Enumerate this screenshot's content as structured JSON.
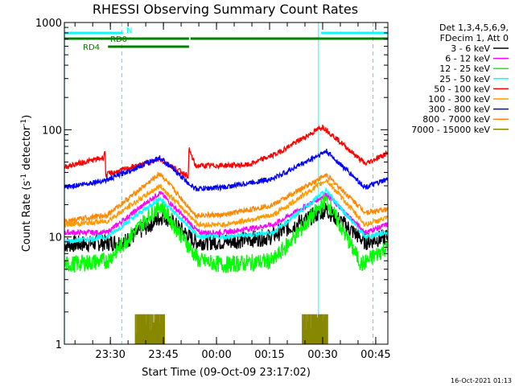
{
  "chart_data": {
    "type": "line",
    "title": "RHESSI Observing Summary Count Rates",
    "xlabel": "Start Time (09-Oct-09 23:17:02)",
    "ylabel_main": "Count Rate (s",
    "ylabel_sup1": "-1",
    "ylabel_mid": " detector",
    "ylabel_sup2": "-1",
    "ylabel_end": ")",
    "y_scale": "log",
    "ylim": [
      1,
      1000
    ],
    "xlim_minutes": [
      -0.03,
      91.4
    ],
    "y_ticks": [
      {
        "value": 1,
        "label": "1"
      },
      {
        "value": 10,
        "label": "10"
      },
      {
        "value": 100,
        "label": "100"
      },
      {
        "value": 1000,
        "label": "1000"
      }
    ],
    "x_ticks": [
      {
        "minute": 12.97,
        "label": "23:30"
      },
      {
        "minute": 27.97,
        "label": "23:45"
      },
      {
        "minute": 42.97,
        "label": "00:00"
      },
      {
        "minute": 57.97,
        "label": "00:15"
      },
      {
        "minute": 72.97,
        "label": "00:30"
      },
      {
        "minute": 87.97,
        "label": "00:45"
      }
    ],
    "legend_header": [
      "Det 1,3,4,5,6,9,",
      "FDecim 1, Att 0"
    ],
    "legend_position": "right",
    "series": [
      {
        "name": "3 - 6 keV",
        "color": "#000000",
        "profile": [
          [
            0,
            8.5
          ],
          [
            17,
            9
          ],
          [
            28,
            16
          ],
          [
            37,
            9
          ],
          [
            45,
            9
          ],
          [
            58,
            10
          ],
          [
            74,
            18
          ],
          [
            85,
            9
          ],
          [
            91,
            10
          ]
        ]
      },
      {
        "name": "6 - 12 keV",
        "color": "#ff00ff",
        "profile": [
          [
            0,
            11
          ],
          [
            12,
            11
          ],
          [
            27,
            26
          ],
          [
            38,
            11
          ],
          [
            45,
            11
          ],
          [
            59,
            13
          ],
          [
            74,
            25
          ],
          [
            85,
            11
          ],
          [
            91,
            13
          ]
        ]
      },
      {
        "name": "12 - 25 keV",
        "color": "#00ff00",
        "profile": [
          [
            0,
            5.5
          ],
          [
            12,
            6
          ],
          [
            27,
            20
          ],
          [
            38,
            6
          ],
          [
            45,
            5.5
          ],
          [
            59,
            6
          ],
          [
            74,
            22
          ],
          [
            84,
            5.5
          ],
          [
            91,
            8
          ]
        ]
      },
      {
        "name": "25 - 50 keV",
        "color": "#00ffff",
        "profile": [
          [
            0,
            9
          ],
          [
            12,
            10
          ],
          [
            27,
            23
          ],
          [
            38,
            10
          ],
          [
            45,
            10
          ],
          [
            59,
            11
          ],
          [
            74,
            27
          ],
          [
            85,
            10
          ],
          [
            91,
            11
          ]
        ]
      },
      {
        "name": "50 - 100 keV",
        "color": "#ff0000",
        "profile": [
          [
            0,
            45
          ],
          [
            11,
            55
          ],
          [
            11.5,
            66
          ],
          [
            11.6,
            38
          ],
          [
            27,
            53
          ],
          [
            35,
            37
          ],
          [
            35.2,
            66
          ],
          [
            37,
            46
          ],
          [
            52,
            47
          ],
          [
            60,
            60
          ],
          [
            73,
            107
          ],
          [
            85,
            48
          ],
          [
            91,
            60
          ]
        ]
      },
      {
        "name": "100 - 300 keV",
        "color": "#ff9900",
        "profile": [
          [
            0,
            13
          ],
          [
            12,
            14
          ],
          [
            27,
            30
          ],
          [
            38,
            13
          ],
          [
            45,
            13
          ],
          [
            59,
            16
          ],
          [
            74,
            34
          ],
          [
            85,
            13
          ],
          [
            91,
            15
          ]
        ]
      },
      {
        "name": "300 - 800 keV",
        "color": "#0000ff",
        "profile": [
          [
            0,
            29
          ],
          [
            12,
            34
          ],
          [
            27,
            55
          ],
          [
            37,
            28
          ],
          [
            45,
            29
          ],
          [
            59,
            35
          ],
          [
            74,
            63
          ],
          [
            85,
            29
          ],
          [
            91,
            34
          ]
        ]
      },
      {
        "name": "800 - 7000 keV",
        "color": "#ff8800",
        "profile": [
          [
            0,
            14
          ],
          [
            12,
            16
          ],
          [
            27,
            39
          ],
          [
            37,
            16
          ],
          [
            45,
            16
          ],
          [
            59,
            20
          ],
          [
            74,
            38
          ],
          [
            85,
            17
          ],
          [
            91,
            18
          ]
        ]
      },
      {
        "name": "7000 - 15000 keV",
        "color": "#888800",
        "profile": [
          [
            20,
            1
          ],
          [
            20.3,
            1.9
          ],
          [
            28,
            1.9
          ],
          [
            28.3,
            1
          ]
        ]
      }
    ],
    "flags": [
      {
        "label": "N",
        "color": "#00ffff",
        "segments": [
          [
            0,
            16.5
          ],
          [
            72.5,
            91.4
          ]
        ]
      },
      {
        "label": "RD0",
        "color": "#008000",
        "segments": [
          [
            0,
            35.2
          ],
          [
            35.6,
            91.4
          ]
        ]
      },
      {
        "label": "RD4",
        "color": "#008000",
        "segments": [
          [
            12.3,
            35.2
          ]
        ]
      }
    ],
    "attenuator_band_2_minutes": [
      67.2,
      74.5
    ],
    "vlines_solid_minutes": [
      0,
      71.8
    ],
    "vlines_dashed_minutes": [
      16.2,
      87.2
    ],
    "timestamp": "16-Oct-2021 01:13"
  }
}
